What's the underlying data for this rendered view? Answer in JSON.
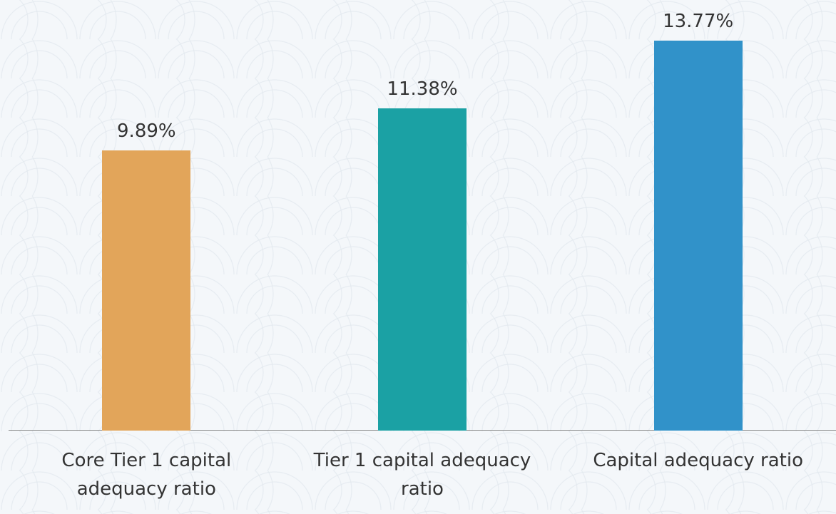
{
  "chart_data": {
    "type": "bar",
    "categories": [
      "Core Tier 1 capital adequacy ratio",
      "Tier 1 capital adequacy ratio",
      "Capital adequacy ratio"
    ],
    "values": [
      9.89,
      11.38,
      13.77
    ],
    "value_labels": [
      "9.89%",
      "11.38%",
      "13.77%"
    ],
    "colors": [
      "#e2a55a",
      "#1ba1a4",
      "#3192c9"
    ]
  }
}
